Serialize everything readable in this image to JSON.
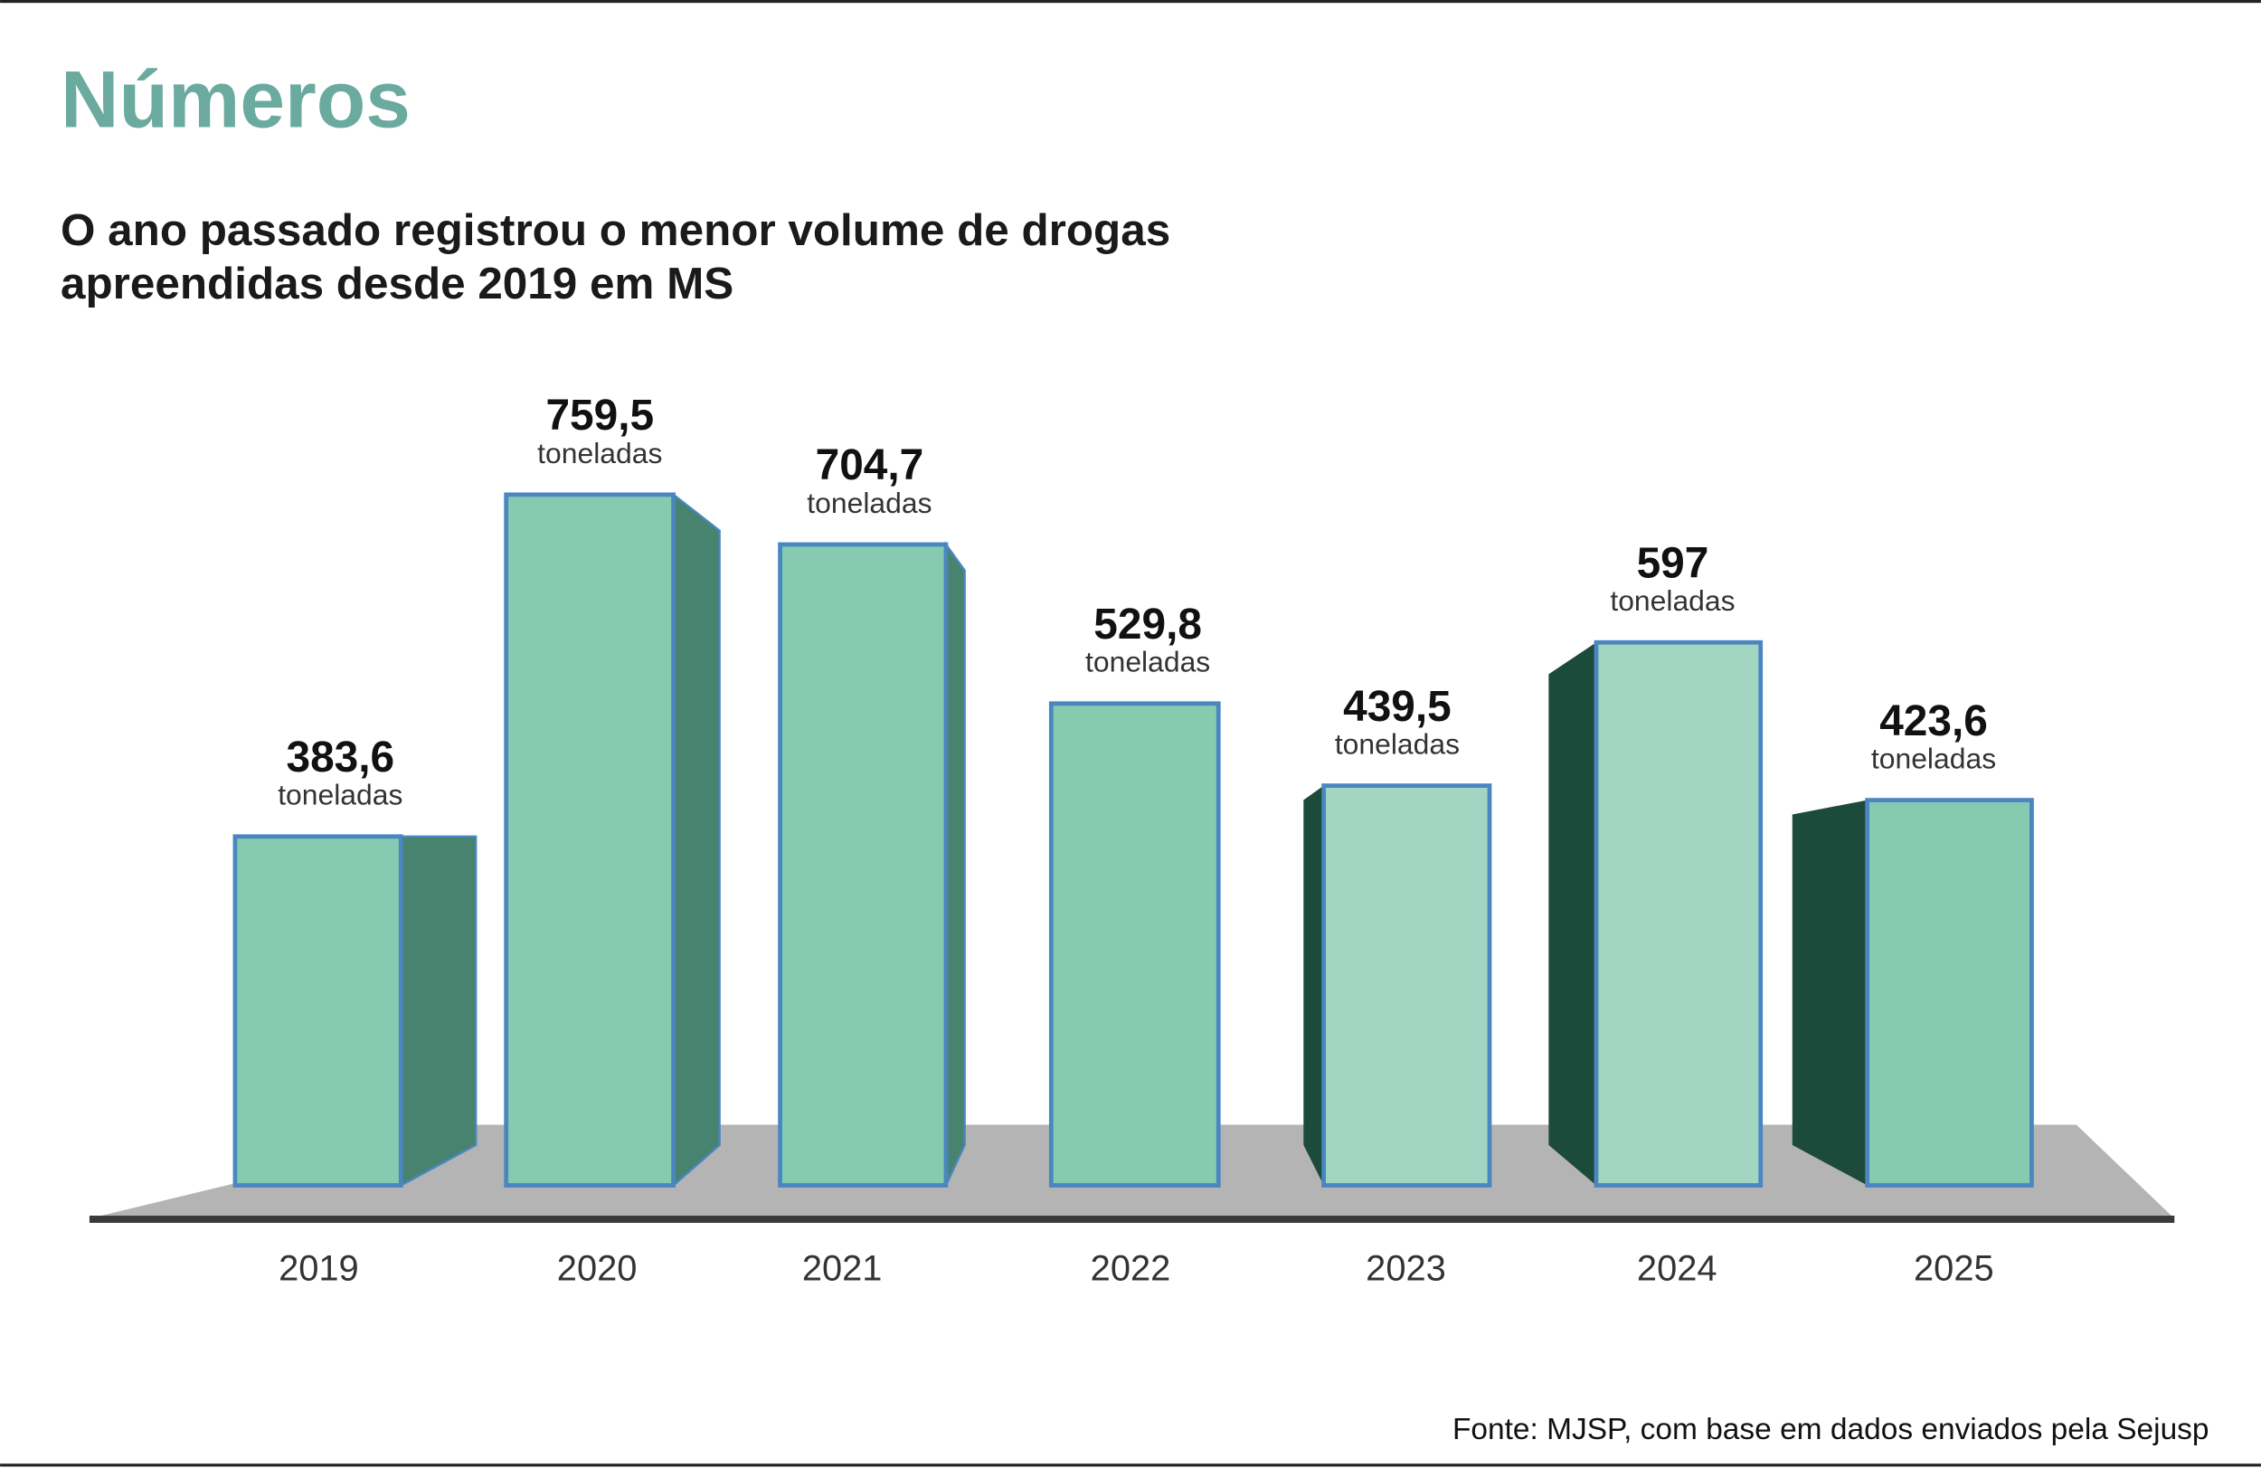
{
  "header": {
    "title": "Números",
    "subtitle_line1": "O ano passado registrou o menor volume de drogas",
    "subtitle_line2": "apreendidas desde 2019 em MS"
  },
  "source": "Fonte: MJSP, com base em dados enviados pela Sejusp",
  "colors": {
    "title": "#6aaa9f",
    "bar_front": "#86cbb0",
    "bar_front_light": "#a2d6c2",
    "bar_border": "#4a86c0",
    "bar_side_right": "#47836f",
    "bar_side_left": "#1c4a3b",
    "floor": "#b4b4b4",
    "floor_edge": "#3a3a3a"
  },
  "chart_data": {
    "type": "bar",
    "style": "3d",
    "categories": [
      "2019",
      "2020",
      "2021",
      "2022",
      "2023",
      "2024",
      "2025"
    ],
    "values": [
      383.6,
      759.5,
      704.7,
      529.8,
      439.5,
      597,
      423.6
    ],
    "value_labels": [
      "383,6",
      "759,5",
      "704,7",
      "529,8",
      "439,5",
      "597",
      "423,6"
    ],
    "unit_label": "toneladas",
    "ylim": [
      0,
      759.5
    ],
    "grid": false,
    "legend": "none"
  }
}
